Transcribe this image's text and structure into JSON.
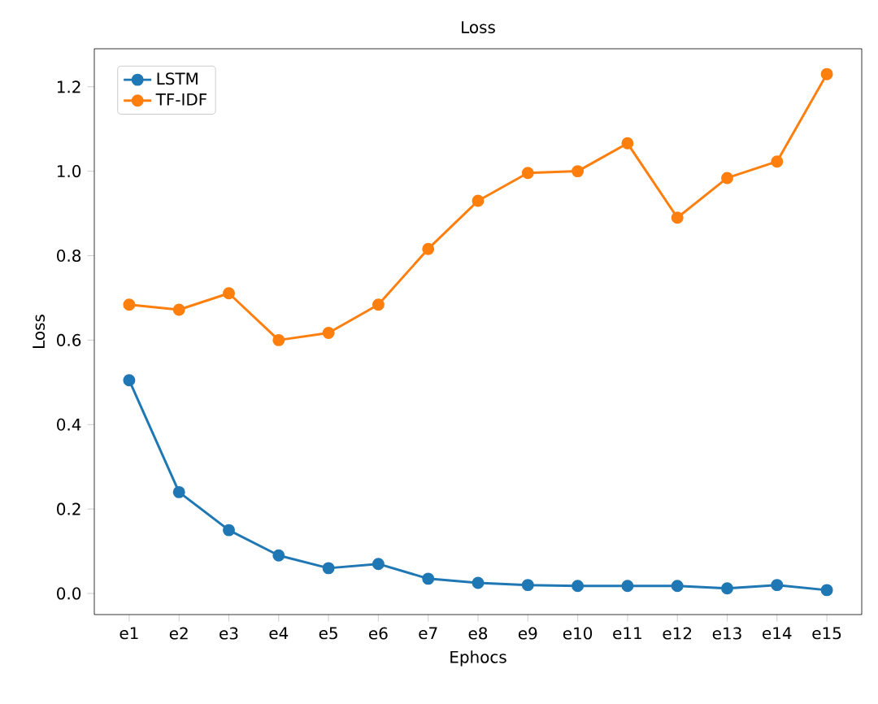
{
  "chart_data": {
    "type": "line",
    "title": "Loss",
    "xlabel": "Ephocs",
    "ylabel": "Loss",
    "categories": [
      "e1",
      "e2",
      "e3",
      "e4",
      "e5",
      "e6",
      "e7",
      "e8",
      "e9",
      "e10",
      "e11",
      "e12",
      "e13",
      "e14",
      "e15"
    ],
    "series": [
      {
        "name": "LSTM",
        "color": "#1f77b4",
        "values": [
          0.505,
          0.24,
          0.15,
          0.09,
          0.06,
          0.07,
          0.035,
          0.025,
          0.02,
          0.018,
          0.018,
          0.018,
          0.012,
          0.02,
          0.008
        ]
      },
      {
        "name": "TF-IDF",
        "color": "#ff7f0e",
        "values": [
          0.684,
          0.672,
          0.711,
          0.6,
          0.617,
          0.684,
          0.816,
          0.93,
          0.996,
          1.0,
          1.066,
          0.89,
          0.984,
          1.023,
          1.23
        ]
      }
    ],
    "ylim": [
      -0.05,
      1.29
    ],
    "yticks": [
      {
        "value": 0,
        "label": "0.0"
      },
      {
        "value": 0.2,
        "label": "0.2"
      },
      {
        "value": 0.4,
        "label": "0.4"
      },
      {
        "value": 0.6,
        "label": "0.6"
      },
      {
        "value": 0.8,
        "label": "0.8"
      },
      {
        "value": 1.0,
        "label": "1.0"
      },
      {
        "value": 1.2,
        "label": "1.2"
      }
    ],
    "legend": "top left",
    "marker": "circle",
    "line_style": "solid",
    "grid": false
  }
}
